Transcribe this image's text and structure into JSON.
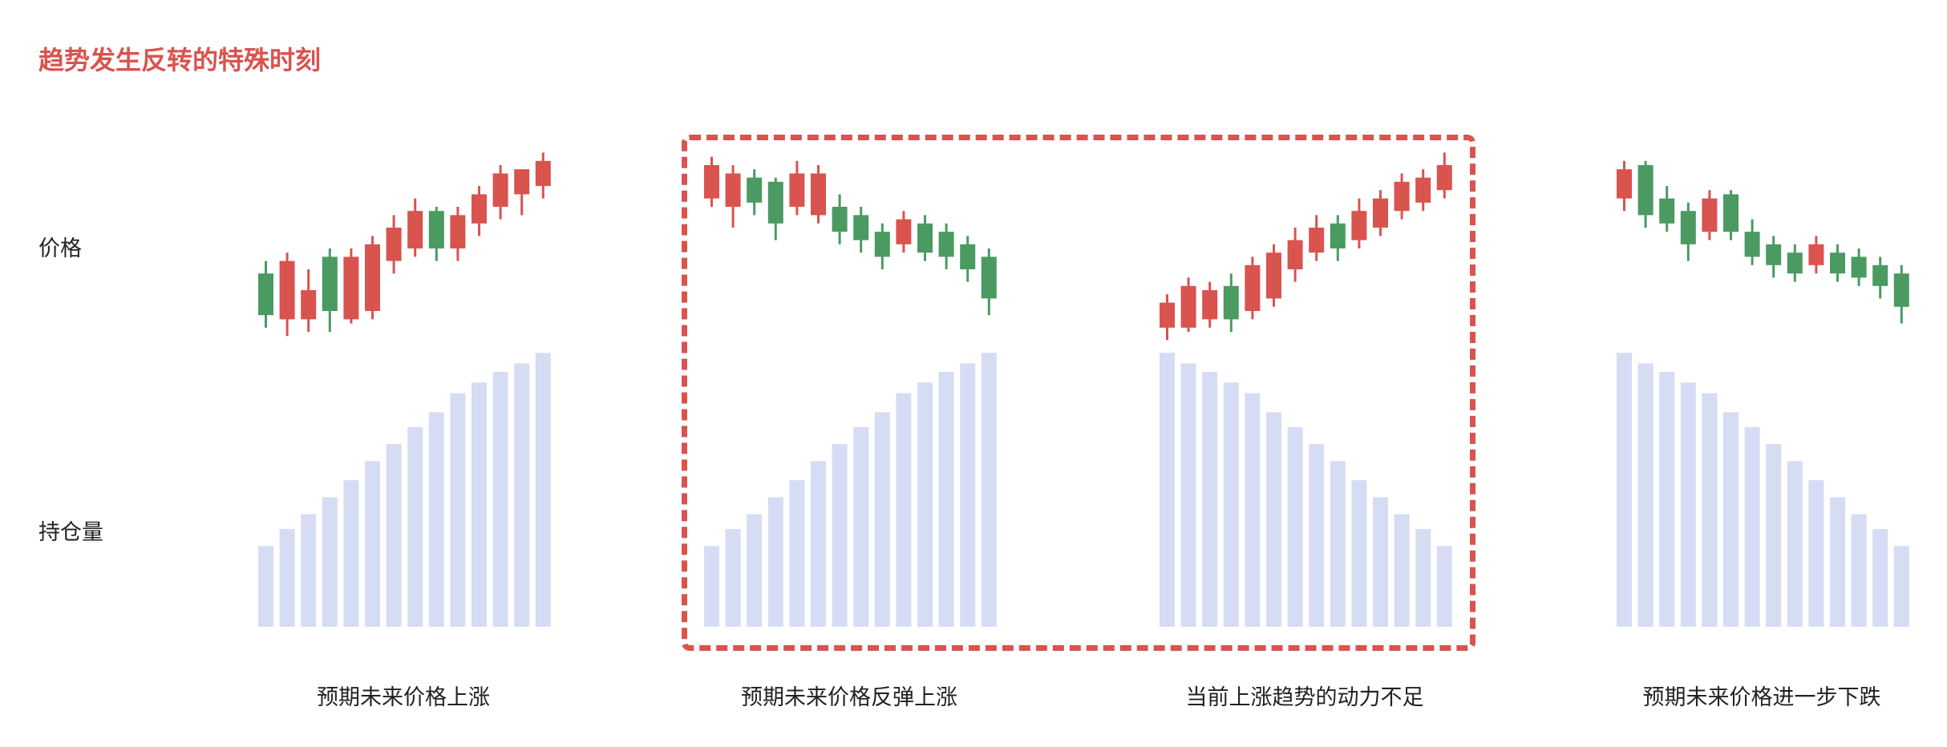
{
  "page": {
    "title": "趋势发生反转的特殊时刻",
    "row_labels": {
      "price": "价格",
      "open_interest": "持仓量"
    }
  },
  "colors": {
    "up": "#d9534f",
    "down": "#4a9a62",
    "volume_bar": "#d6dcf4",
    "title": "#d9534f",
    "highlight_border": "#d9534f"
  },
  "chart_data": [
    {
      "type": "bar",
      "caption": "预期未来价格上涨",
      "candles": [
        {
          "o": 94,
          "c": 84,
          "h": 97,
          "l": 81
        },
        {
          "o": 83,
          "c": 97,
          "h": 99,
          "l": 79
        },
        {
          "o": 83,
          "c": 90,
          "h": 95,
          "l": 80
        },
        {
          "o": 98,
          "c": 85,
          "h": 100,
          "l": 80
        },
        {
          "o": 83,
          "c": 98,
          "h": 100,
          "l": 82
        },
        {
          "o": 85,
          "c": 101,
          "h": 103,
          "l": 83
        },
        {
          "o": 97,
          "c": 105,
          "h": 108,
          "l": 94
        },
        {
          "o": 100,
          "c": 109,
          "h": 112,
          "l": 98
        },
        {
          "o": 109,
          "c": 100,
          "h": 110,
          "l": 97
        },
        {
          "o": 100,
          "c": 108,
          "h": 110,
          "l": 97
        },
        {
          "o": 106,
          "c": 113,
          "h": 115,
          "l": 103
        },
        {
          "o": 110,
          "c": 118,
          "h": 120,
          "l": 107
        },
        {
          "o": 113,
          "c": 119,
          "h": 119,
          "l": 108
        },
        {
          "o": 115,
          "c": 121,
          "h": 123,
          "l": 112
        }
      ],
      "open_interest": [
        38,
        46,
        53,
        61,
        69,
        78,
        86,
        94,
        101,
        110,
        115,
        120,
        124,
        129
      ]
    },
    {
      "type": "bar",
      "caption": "预期未来价格反弹上涨",
      "candles": [
        {
          "o": 112,
          "c": 120,
          "h": 122,
          "l": 110
        },
        {
          "o": 110,
          "c": 118,
          "h": 120,
          "l": 105
        },
        {
          "o": 117,
          "c": 111,
          "h": 119,
          "l": 108
        },
        {
          "o": 116,
          "c": 106,
          "h": 117,
          "l": 102
        },
        {
          "o": 110,
          "c": 118,
          "h": 121,
          "l": 108
        },
        {
          "o": 108,
          "c": 118,
          "h": 120,
          "l": 106
        },
        {
          "o": 110,
          "c": 104,
          "h": 113,
          "l": 101
        },
        {
          "o": 108,
          "c": 102,
          "h": 110,
          "l": 99
        },
        {
          "o": 104,
          "c": 98,
          "h": 106,
          "l": 95
        },
        {
          "o": 101,
          "c": 107,
          "h": 109,
          "l": 99
        },
        {
          "o": 106,
          "c": 99,
          "h": 108,
          "l": 97
        },
        {
          "o": 104,
          "c": 98,
          "h": 106,
          "l": 95
        },
        {
          "o": 101,
          "c": 95,
          "h": 103,
          "l": 92
        },
        {
          "o": 98,
          "c": 88,
          "h": 100,
          "l": 84
        }
      ],
      "open_interest": [
        38,
        46,
        53,
        61,
        69,
        78,
        86,
        94,
        101,
        110,
        115,
        120,
        124,
        129
      ]
    },
    {
      "type": "bar",
      "caption": "当前上涨趋势的动力不足",
      "candles": [
        {
          "o": 81,
          "c": 87,
          "h": 89,
          "l": 78
        },
        {
          "o": 81,
          "c": 91,
          "h": 93,
          "l": 80
        },
        {
          "o": 83,
          "c": 90,
          "h": 92,
          "l": 81
        },
        {
          "o": 91,
          "c": 83,
          "h": 94,
          "l": 80
        },
        {
          "o": 85,
          "c": 96,
          "h": 98,
          "l": 83
        },
        {
          "o": 88,
          "c": 99,
          "h": 101,
          "l": 86
        },
        {
          "o": 95,
          "c": 102,
          "h": 105,
          "l": 92
        },
        {
          "o": 99,
          "c": 105,
          "h": 108,
          "l": 97
        },
        {
          "o": 106,
          "c": 100,
          "h": 108,
          "l": 97
        },
        {
          "o": 102,
          "c": 109,
          "h": 112,
          "l": 100
        },
        {
          "o": 105,
          "c": 112,
          "h": 114,
          "l": 103
        },
        {
          "o": 109,
          "c": 116,
          "h": 118,
          "l": 107
        },
        {
          "o": 111,
          "c": 117,
          "h": 119,
          "l": 109
        },
        {
          "o": 114,
          "c": 120,
          "h": 123,
          "l": 112
        }
      ],
      "open_interest": [
        129,
        124,
        120,
        115,
        110,
        101,
        94,
        86,
        78,
        69,
        61,
        53,
        46,
        38
      ]
    },
    {
      "type": "bar",
      "caption": "预期未来价格进一步下跌",
      "candles": [
        {
          "o": 112,
          "c": 119,
          "h": 121,
          "l": 109
        },
        {
          "o": 120,
          "c": 108,
          "h": 121,
          "l": 105
        },
        {
          "o": 112,
          "c": 106,
          "h": 115,
          "l": 104
        },
        {
          "o": 109,
          "c": 101,
          "h": 111,
          "l": 97
        },
        {
          "o": 104,
          "c": 112,
          "h": 114,
          "l": 102
        },
        {
          "o": 113,
          "c": 104,
          "h": 114,
          "l": 102
        },
        {
          "o": 104,
          "c": 98,
          "h": 107,
          "l": 96
        },
        {
          "o": 101,
          "c": 96,
          "h": 103,
          "l": 93
        },
        {
          "o": 99,
          "c": 94,
          "h": 101,
          "l": 92
        },
        {
          "o": 96,
          "c": 101,
          "h": 103,
          "l": 94
        },
        {
          "o": 99,
          "c": 94,
          "h": 101,
          "l": 92
        },
        {
          "o": 98,
          "c": 93,
          "h": 100,
          "l": 91
        },
        {
          "o": 96,
          "c": 91,
          "h": 98,
          "l": 88
        },
        {
          "o": 94,
          "c": 86,
          "h": 96,
          "l": 82
        }
      ],
      "open_interest": [
        129,
        124,
        120,
        115,
        110,
        101,
        94,
        86,
        78,
        69,
        61,
        53,
        46,
        38
      ]
    }
  ]
}
